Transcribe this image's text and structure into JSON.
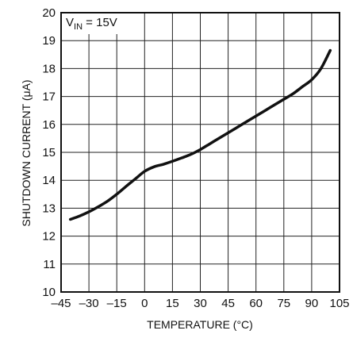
{
  "chart_data": {
    "type": "line",
    "xlabel": "TEMPERATURE (°C)",
    "ylabel": "SHUTDOWN CURRENT (μA)",
    "xlim": [
      -45,
      105
    ],
    "ylim": [
      10,
      20
    ],
    "x_ticks": [
      -45,
      -30,
      -15,
      0,
      15,
      30,
      45,
      60,
      75,
      90,
      105
    ],
    "x_tick_labels": [
      "–45",
      "–30",
      "–15",
      "0",
      "15",
      "30",
      "45",
      "60",
      "75",
      "90",
      "105"
    ],
    "y_ticks": [
      10,
      11,
      12,
      13,
      14,
      15,
      16,
      17,
      18,
      19,
      20
    ],
    "y_tick_labels": [
      "10",
      "11",
      "12",
      "13",
      "14",
      "15",
      "16",
      "17",
      "18",
      "19",
      "20"
    ],
    "grid": true,
    "annotation": {
      "prefix": "V",
      "subscript": "IN",
      "suffix": " = 15V"
    },
    "series": [
      {
        "color": "#111111",
        "x": [
          -40,
          -35,
          -30,
          -25,
          -20,
          -15,
          -10,
          -5,
          0,
          5,
          10,
          15,
          20,
          25,
          30,
          35,
          40,
          45,
          50,
          55,
          60,
          65,
          70,
          75,
          80,
          85,
          90,
          95,
          100
        ],
        "y": [
          12.6,
          12.72,
          12.87,
          13.05,
          13.25,
          13.5,
          13.78,
          14.05,
          14.32,
          14.48,
          14.57,
          14.68,
          14.8,
          14.93,
          15.1,
          15.3,
          15.5,
          15.7,
          15.9,
          16.1,
          16.3,
          16.5,
          16.7,
          16.9,
          17.1,
          17.35,
          17.6,
          18.0,
          18.65
        ]
      }
    ]
  }
}
